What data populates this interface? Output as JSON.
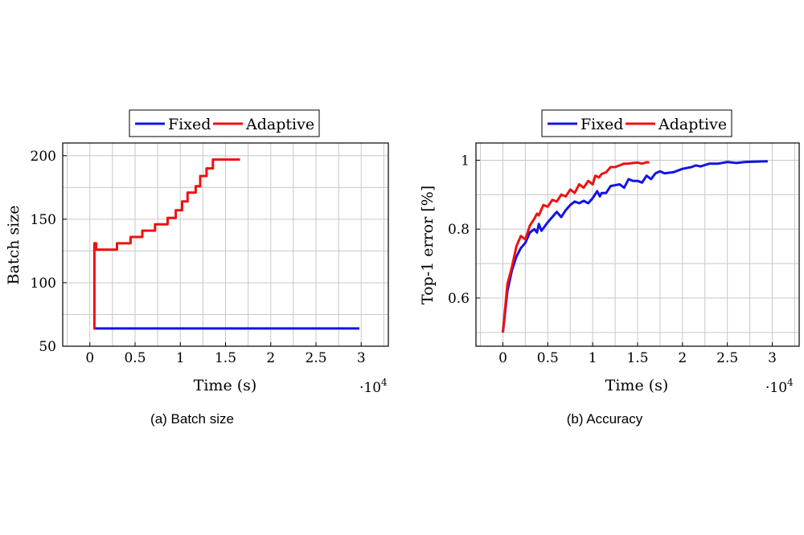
{
  "colors": {
    "fixed": "#1414e6",
    "adaptive": "#ee1111"
  },
  "chart_data": [
    {
      "type": "line",
      "caption": "(a) Batch size",
      "xlabel": "Time (s)",
      "ylabel": "Batch size",
      "x_multiplier": "·10",
      "x_multiplier_exp": "4",
      "xlim": [
        -0.3,
        3.3
      ],
      "ylim": [
        50,
        210
      ],
      "xticks": [
        0,
        0.5,
        1,
        1.5,
        2,
        2.5,
        3
      ],
      "xtick_labels": [
        "0",
        "0.5",
        "1",
        "1.5",
        "2",
        "2.5",
        "3"
      ],
      "yticks": [
        50,
        100,
        150,
        200
      ],
      "ytick_labels": [
        "50",
        "100",
        "150",
        "200"
      ],
      "grid": true,
      "legend": {
        "placement": "top-center-outside",
        "entries": [
          "Fixed",
          "Adaptive"
        ]
      },
      "series": [
        {
          "name": "Fixed",
          "color_key": "fixed",
          "points": [
            [
              0.04,
              64
            ],
            [
              2.98,
              64
            ]
          ]
        },
        {
          "name": "Adaptive",
          "color_key": "adaptive",
          "points": [
            [
              0.04,
              64
            ],
            [
              0.05,
              64
            ],
            [
              0.05,
              131
            ],
            [
              0.07,
              131
            ],
            [
              0.07,
              126
            ],
            [
              0.3,
              126
            ],
            [
              0.3,
              131
            ],
            [
              0.45,
              131
            ],
            [
              0.45,
              136
            ],
            [
              0.58,
              136
            ],
            [
              0.58,
              141
            ],
            [
              0.72,
              141
            ],
            [
              0.72,
              146
            ],
            [
              0.86,
              146
            ],
            [
              0.86,
              151
            ],
            [
              0.95,
              151
            ],
            [
              0.95,
              157
            ],
            [
              1.02,
              157
            ],
            [
              1.02,
              164
            ],
            [
              1.08,
              164
            ],
            [
              1.08,
              171
            ],
            [
              1.17,
              171
            ],
            [
              1.17,
              176
            ],
            [
              1.22,
              176
            ],
            [
              1.22,
              184
            ],
            [
              1.29,
              184
            ],
            [
              1.29,
              190
            ],
            [
              1.36,
              190
            ],
            [
              1.36,
              197
            ],
            [
              1.66,
              197
            ]
          ]
        }
      ]
    },
    {
      "type": "line",
      "caption": "(b) Accuracy",
      "xlabel": "Time (s)",
      "ylabel": "Top-1 error [%]",
      "x_multiplier": "·10",
      "x_multiplier_exp": "4",
      "xlim": [
        -0.3,
        3.3
      ],
      "ylim": [
        0.46,
        1.05
      ],
      "xticks": [
        0,
        0.5,
        1,
        1.5,
        2,
        2.5,
        3
      ],
      "xtick_labels": [
        "0",
        "0.5",
        "1",
        "1.5",
        "2",
        "2.5",
        "3"
      ],
      "yticks": [
        0.6,
        0.8,
        1.0
      ],
      "ytick_labels": [
        "0.6",
        "0.8",
        "1"
      ],
      "grid": true,
      "legend": {
        "placement": "top-center-outside",
        "entries": [
          "Fixed",
          "Adaptive"
        ]
      },
      "series": [
        {
          "name": "Fixed",
          "color_key": "fixed",
          "points": [
            [
              0.0,
              0.5
            ],
            [
              0.05,
              0.62
            ],
            [
              0.1,
              0.68
            ],
            [
              0.15,
              0.72
            ],
            [
              0.2,
              0.745
            ],
            [
              0.25,
              0.76
            ],
            [
              0.3,
              0.79
            ],
            [
              0.35,
              0.8
            ],
            [
              0.38,
              0.79
            ],
            [
              0.4,
              0.815
            ],
            [
              0.43,
              0.795
            ],
            [
              0.5,
              0.82
            ],
            [
              0.55,
              0.835
            ],
            [
              0.6,
              0.85
            ],
            [
              0.65,
              0.835
            ],
            [
              0.7,
              0.855
            ],
            [
              0.75,
              0.87
            ],
            [
              0.8,
              0.88
            ],
            [
              0.85,
              0.875
            ],
            [
              0.9,
              0.882
            ],
            [
              0.95,
              0.875
            ],
            [
              1.0,
              0.89
            ],
            [
              1.05,
              0.91
            ],
            [
              1.08,
              0.895
            ],
            [
              1.1,
              0.905
            ],
            [
              1.15,
              0.905
            ],
            [
              1.2,
              0.925
            ],
            [
              1.3,
              0.93
            ],
            [
              1.35,
              0.92
            ],
            [
              1.4,
              0.945
            ],
            [
              1.45,
              0.94
            ],
            [
              1.5,
              0.94
            ],
            [
              1.55,
              0.935
            ],
            [
              1.6,
              0.955
            ],
            [
              1.65,
              0.945
            ],
            [
              1.7,
              0.962
            ],
            [
              1.75,
              0.968
            ],
            [
              1.8,
              0.962
            ],
            [
              1.9,
              0.965
            ],
            [
              2.0,
              0.975
            ],
            [
              2.1,
              0.98
            ],
            [
              2.15,
              0.985
            ],
            [
              2.2,
              0.982
            ],
            [
              2.3,
              0.99
            ],
            [
              2.4,
              0.99
            ],
            [
              2.5,
              0.995
            ],
            [
              2.6,
              0.992
            ],
            [
              2.7,
              0.995
            ],
            [
              2.8,
              0.996
            ],
            [
              2.95,
              0.997
            ]
          ]
        },
        {
          "name": "Adaptive",
          "color_key": "adaptive",
          "points": [
            [
              0.0,
              0.5
            ],
            [
              0.05,
              0.64
            ],
            [
              0.1,
              0.69
            ],
            [
              0.15,
              0.75
            ],
            [
              0.2,
              0.78
            ],
            [
              0.25,
              0.77
            ],
            [
              0.3,
              0.81
            ],
            [
              0.35,
              0.83
            ],
            [
              0.38,
              0.845
            ],
            [
              0.4,
              0.84
            ],
            [
              0.45,
              0.87
            ],
            [
              0.5,
              0.865
            ],
            [
              0.55,
              0.885
            ],
            [
              0.6,
              0.88
            ],
            [
              0.65,
              0.9
            ],
            [
              0.7,
              0.895
            ],
            [
              0.75,
              0.915
            ],
            [
              0.8,
              0.905
            ],
            [
              0.85,
              0.93
            ],
            [
              0.9,
              0.92
            ],
            [
              0.95,
              0.94
            ],
            [
              1.0,
              0.93
            ],
            [
              1.03,
              0.955
            ],
            [
              1.07,
              0.95
            ],
            [
              1.1,
              0.96
            ],
            [
              1.15,
              0.965
            ],
            [
              1.2,
              0.98
            ],
            [
              1.25,
              0.98
            ],
            [
              1.3,
              0.985
            ],
            [
              1.35,
              0.99
            ],
            [
              1.4,
              0.99
            ],
            [
              1.45,
              0.992
            ],
            [
              1.5,
              0.993
            ],
            [
              1.55,
              0.99
            ],
            [
              1.6,
              0.994
            ],
            [
              1.63,
              0.993
            ]
          ]
        }
      ]
    }
  ]
}
